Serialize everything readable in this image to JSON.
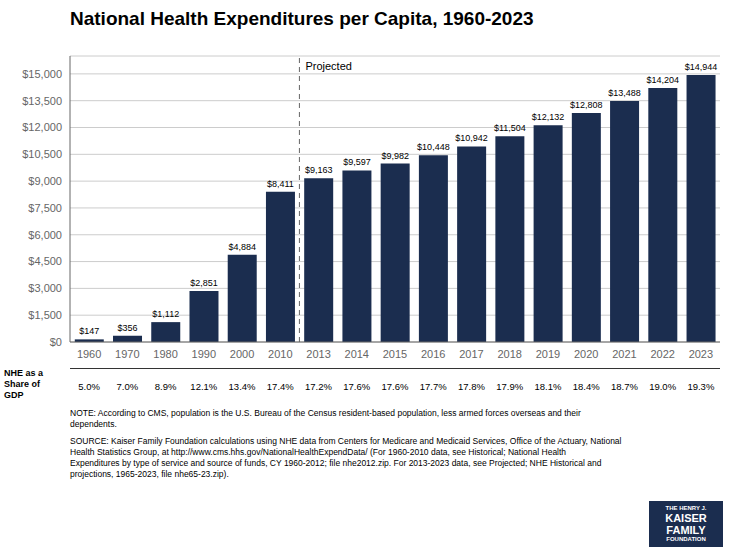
{
  "chart_data": {
    "type": "bar",
    "title": "National Health Expenditures per Capita, 1960-2023",
    "categories": [
      "1960",
      "1970",
      "1980",
      "1990",
      "2000",
      "2010",
      "2013",
      "2014",
      "2015",
      "2016",
      "2017",
      "2018",
      "2019",
      "2020",
      "2021",
      "2022",
      "2023"
    ],
    "values": [
      147,
      356,
      1112,
      2851,
      4884,
      8411,
      9163,
      9597,
      9982,
      10448,
      10942,
      11504,
      12132,
      12808,
      13488,
      14204,
      14944
    ],
    "value_labels": [
      "$147",
      "$356",
      "$1,112",
      "$2,851",
      "$4,884",
      "$8,411",
      "$9,163",
      "$9,597",
      "$9,982",
      "$10,448",
      "$10,942",
      "$11,504",
      "$12,132",
      "$12,808",
      "$13,488",
      "$14,204",
      "$14,944"
    ],
    "data_labels": true,
    "color": "#1b2d4f",
    "ylim": [
      0,
      16000
    ],
    "yticks": [
      {
        "value": 0,
        "label": "$0"
      },
      {
        "value": 1500,
        "label": "$1,500"
      },
      {
        "value": 3000,
        "label": "$3,000"
      },
      {
        "value": 4500,
        "label": "$4,500"
      },
      {
        "value": 6000,
        "label": "$6,000"
      },
      {
        "value": 7500,
        "label": "$7,500"
      },
      {
        "value": 9000,
        "label": "$9,000"
      },
      {
        "value": 10500,
        "label": "$10,500"
      },
      {
        "value": 12000,
        "label": "$12,000"
      },
      {
        "value": 13500,
        "label": "$13,500"
      },
      {
        "value": 15000,
        "label": "$15,000"
      }
    ],
    "grid": true,
    "annotations": [
      {
        "text": "Projected",
        "after": "2010"
      }
    ],
    "gdp_share_label": "NHE as a\nShare of\nGDP",
    "gdp_shares": [
      "5.0%",
      "7.0%",
      "8.9%",
      "12.1%",
      "13.4%",
      "17.4%",
      "17.2%",
      "17.6%",
      "17.6%",
      "17.7%",
      "17.8%",
      "17.9%",
      "18.1%",
      "18.4%",
      "18.7%",
      "19.0%",
      "19.3%"
    ],
    "note": "NOTE: According to CMS, population is the U.S. Bureau of the Census resident-based population, less armed forces overseas and their\ndependents.",
    "source": "SOURCE: Kaiser Family Foundation calculations using NHE data from Centers for Medicare and Medicaid Services, Office of the Actuary, National\nHealth Statistics Group, at http://www.cms.hhs.gov/NationalHealthExpendData/ (For 1960-2010 data, see Historical; National Health\nExpenditures by type of service and source of funds, CY 1960-2012; file nhe2012.zip. For 2013-2023 data, see Projected; NHE Historical and\nprojections, 1965-2023, file nhe65-23.zip).",
    "logo": [
      "THE HENRY J.",
      "KAISER",
      "FAMILY",
      "FOUNDATION"
    ]
  }
}
